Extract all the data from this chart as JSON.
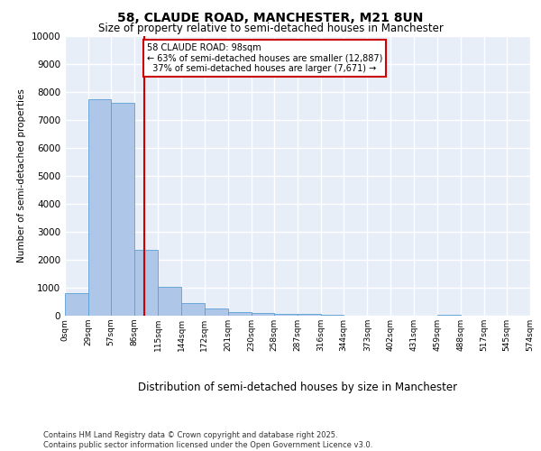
{
  "title1": "58, CLAUDE ROAD, MANCHESTER, M21 8UN",
  "title2": "Size of property relative to semi-detached houses in Manchester",
  "xlabel": "Distribution of semi-detached houses by size in Manchester",
  "ylabel": "Number of semi-detached properties",
  "property_size": 98,
  "property_label": "58 CLAUDE ROAD: 98sqm",
  "pct_smaller": 63,
  "pct_larger": 37,
  "n_smaller": 12887,
  "n_larger": 7671,
  "bar_color": "#aec6e8",
  "bar_edge_color": "#5a9fd4",
  "vline_color": "#cc0000",
  "annotation_box_color": "#cc0000",
  "background_color": "#e8eef8",
  "grid_color": "#ffffff",
  "bins": [
    0,
    29,
    57,
    86,
    115,
    144,
    172,
    201,
    230,
    258,
    287,
    316,
    344,
    373,
    402,
    431,
    459,
    488,
    517,
    545,
    574
  ],
  "bin_labels": [
    "0sqm",
    "29sqm",
    "57sqm",
    "86sqm",
    "115sqm",
    "144sqm",
    "172sqm",
    "201sqm",
    "230sqm",
    "258sqm",
    "287sqm",
    "316sqm",
    "344sqm",
    "373sqm",
    "402sqm",
    "431sqm",
    "459sqm",
    "488sqm",
    "517sqm",
    "545sqm",
    "574sqm"
  ],
  "bar_heights": [
    820,
    7750,
    7620,
    2340,
    1040,
    450,
    270,
    120,
    100,
    80,
    50,
    30,
    0,
    0,
    0,
    0,
    30,
    0,
    0,
    0
  ],
  "ylim": [
    0,
    10000
  ],
  "yticks": [
    0,
    1000,
    2000,
    3000,
    4000,
    5000,
    6000,
    7000,
    8000,
    9000,
    10000
  ],
  "footer_line1": "Contains HM Land Registry data © Crown copyright and database right 2025.",
  "footer_line2": "Contains public sector information licensed under the Open Government Licence v3.0."
}
